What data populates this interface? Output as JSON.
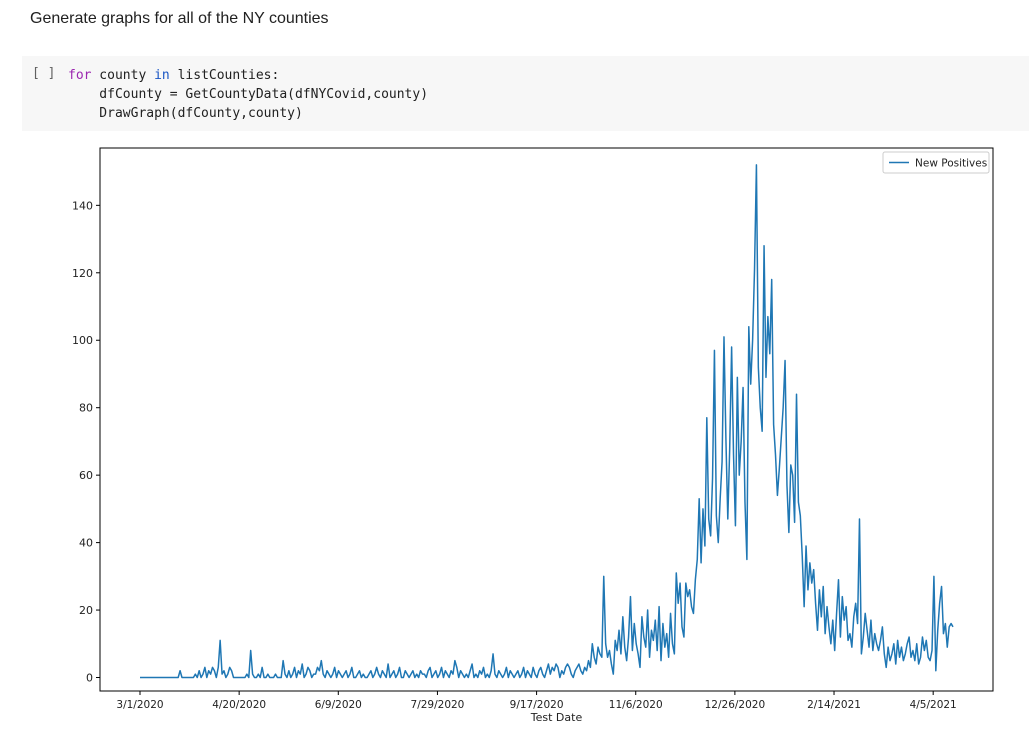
{
  "markdown": {
    "text": "Generate graphs for all of the NY counties"
  },
  "code_cell": {
    "run_indicator": "[ ]",
    "lines": [
      [
        {
          "t": "for",
          "c": "kw"
        },
        {
          "t": " county ",
          "c": ""
        },
        {
          "t": "in",
          "c": "kw2"
        },
        {
          "t": " listCounties:",
          "c": ""
        }
      ],
      [
        {
          "t": "    dfCounty = GetCountyData(dfNYCovid,county)",
          "c": ""
        }
      ],
      [
        {
          "t": "    DrawGraph(dfCounty,county)",
          "c": ""
        }
      ]
    ]
  },
  "colors": {
    "line": "#1f77b4",
    "axis": "#000000"
  },
  "chart_data": {
    "type": "line",
    "xlabel": "Test Date",
    "ylabel": "",
    "ylim": [
      -4,
      157
    ],
    "yticks": [
      0,
      20,
      40,
      60,
      80,
      100,
      120,
      140
    ],
    "xticks": [
      "3/1/2020",
      "4/20/2020",
      "6/9/2020",
      "7/29/2020",
      "9/17/2020",
      "11/6/2020",
      "12/26/2020",
      "2/14/2021",
      "4/5/2021"
    ],
    "x_start": "3/1/2020",
    "x_end": "4/15/2021",
    "legend": {
      "position": "top-right",
      "entries": [
        "New Positives"
      ]
    },
    "grid": false,
    "series": [
      {
        "name": "New Positives",
        "values": [
          0,
          0,
          0,
          0,
          0,
          0,
          0,
          0,
          0,
          0,
          0,
          0,
          0,
          0,
          0,
          0,
          0,
          0,
          0,
          0,
          0,
          2,
          0,
          0,
          0,
          0,
          0,
          0,
          0,
          1,
          0,
          2,
          0,
          1,
          3,
          0,
          2,
          1,
          3,
          2,
          0,
          3,
          11,
          1,
          2,
          0,
          1,
          3,
          2,
          0,
          0,
          0,
          0,
          0,
          0,
          0,
          1,
          0,
          8,
          1,
          0,
          0,
          1,
          0,
          3,
          0,
          0,
          1,
          0,
          0,
          0,
          1,
          0,
          0,
          0,
          5,
          1,
          0,
          2,
          0,
          1,
          3,
          0,
          2,
          1,
          4,
          0,
          1,
          3,
          2,
          0,
          1,
          1,
          3,
          2,
          5,
          1,
          0,
          2,
          1,
          0,
          1,
          3,
          0,
          2,
          1,
          0,
          1,
          2,
          0,
          1,
          3,
          0,
          0,
          1,
          2,
          0,
          1,
          0,
          0,
          1,
          2,
          0,
          1,
          3,
          1,
          0,
          2,
          1,
          0,
          4,
          0,
          1,
          2,
          0,
          1,
          3,
          0,
          0,
          2,
          1,
          0,
          1,
          2,
          0,
          1,
          0,
          2,
          1,
          1,
          0,
          2,
          3,
          0,
          1,
          2,
          0,
          1,
          3,
          0,
          2,
          1,
          0,
          2,
          1,
          5,
          3,
          0,
          2,
          1,
          0,
          1,
          0,
          2,
          4,
          0,
          1,
          0,
          2,
          1,
          3,
          0,
          1,
          0,
          2,
          7,
          1,
          0,
          2,
          1,
          0,
          1,
          3,
          0,
          2,
          1,
          0,
          1,
          2,
          0,
          1,
          3,
          0,
          2,
          1,
          0,
          3,
          1,
          0,
          2,
          3,
          1,
          0,
          2,
          4,
          1,
          3,
          2,
          4,
          3,
          0,
          2,
          1,
          3,
          4,
          3,
          1,
          0,
          2,
          3,
          4,
          2,
          1,
          3,
          2,
          5,
          3,
          10,
          6,
          4,
          9,
          7,
          6,
          30,
          10,
          6,
          8,
          4,
          1,
          11,
          8,
          14,
          7,
          18,
          9,
          5,
          12,
          24,
          8,
          16,
          10,
          7,
          3,
          18,
          12,
          9,
          20,
          6,
          14,
          11,
          17,
          8,
          21,
          5,
          16,
          9,
          13,
          6,
          19,
          10,
          7,
          31,
          22,
          28,
          15,
          12,
          28,
          24,
          26,
          21,
          19,
          29,
          35,
          53,
          34,
          50,
          39,
          77,
          47,
          42,
          59,
          97,
          48,
          40,
          53,
          64,
          101,
          71,
          47,
          68,
          98,
          66,
          45,
          89,
          60,
          70,
          86,
          52,
          35,
          104,
          87,
          100,
          121,
          152,
          92,
          80,
          73,
          128,
          89,
          107,
          96,
          118,
          75,
          66,
          54,
          62,
          71,
          80,
          94,
          57,
          43,
          63,
          60,
          46,
          84,
          52,
          48,
          36,
          21,
          39,
          26,
          34,
          28,
          32,
          22,
          14,
          26,
          18,
          27,
          13,
          21,
          15,
          10,
          17,
          8,
          19,
          29,
          12,
          24,
          17,
          21,
          11,
          13,
          9,
          18,
          22,
          16,
          47,
          7,
          12,
          19,
          14,
          9,
          17,
          8,
          13,
          10,
          8,
          11,
          15,
          7,
          3,
          9,
          5,
          7,
          10,
          4,
          11,
          6,
          9,
          5,
          7,
          10,
          12,
          6,
          8,
          5,
          10,
          4,
          6,
          12,
          8,
          11,
          6,
          5,
          8,
          30,
          2,
          14,
          22,
          27,
          13,
          16,
          9,
          15,
          16,
          15
        ]
      }
    ]
  }
}
